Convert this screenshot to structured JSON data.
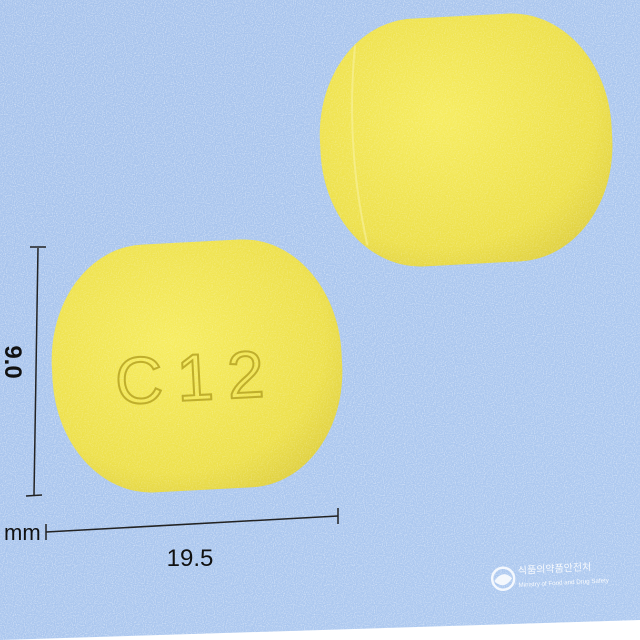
{
  "photo": {
    "background_color": "#a9c6ee",
    "tablet_color": "#f0e54f",
    "front_tablet": {
      "imprint": "C12"
    },
    "back_tablet": {
      "imprint": ""
    }
  },
  "dimensions": {
    "unit": "mm",
    "length": "19.5",
    "width": "9.0"
  },
  "watermark": {
    "korean": "식품의약품안전처",
    "english": "Ministry of Food and Drug Safety"
  }
}
